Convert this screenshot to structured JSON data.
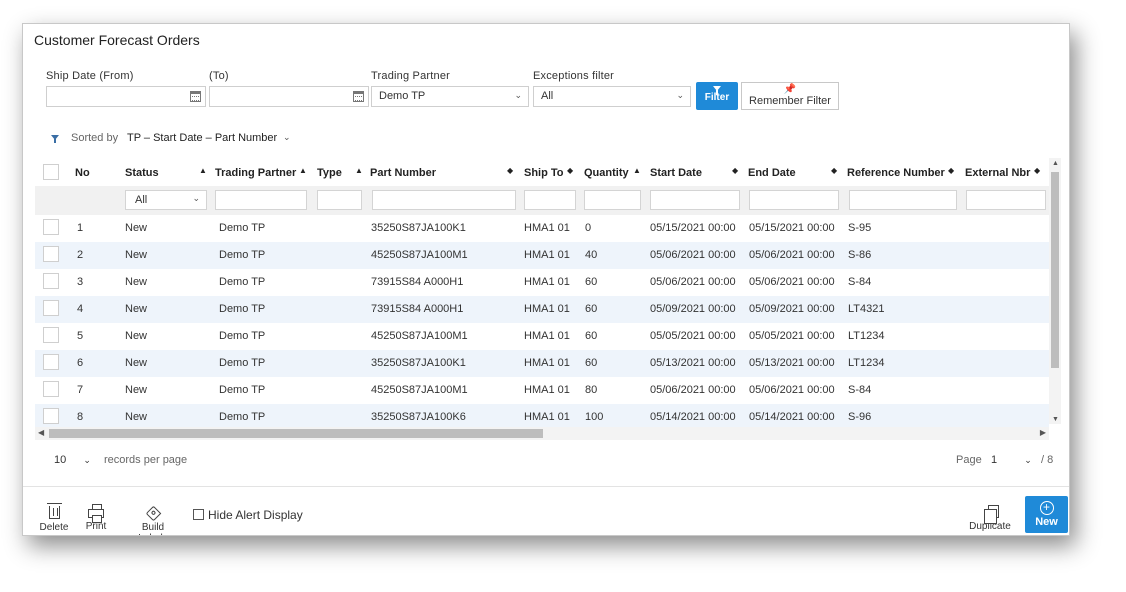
{
  "page": {
    "title": "Customer Forecast Orders"
  },
  "filters": {
    "ship_date_from_label": "Ship Date (From)",
    "ship_date_from_value": "",
    "ship_date_to_label": "(To)",
    "ship_date_to_value": "",
    "trading_partner_label": "Trading Partner",
    "trading_partner_value": "Demo TP",
    "exceptions_label": "Exceptions filter",
    "exceptions_value": "All",
    "filter_button": "Filter",
    "remember_button": "Remember Filter"
  },
  "sort": {
    "label": "Sorted by",
    "value": "TP – Start Date – Part Number"
  },
  "grid": {
    "columns": {
      "no": "No",
      "status": "Status",
      "trading_partner": "Trading Partner",
      "type": "Type",
      "part_number": "Part Number",
      "ship_to": "Ship To",
      "quantity": "Quantity",
      "start_date": "Start Date",
      "end_date": "End Date",
      "reference_number": "Reference Number",
      "external_nbr": "External Nbr"
    },
    "status_filter": "All",
    "rows": [
      {
        "no": "1",
        "status": "New",
        "tp": "Demo TP",
        "type": "",
        "part": "35250S87JA100K1",
        "ship_to": "HMA1 01",
        "qty": "0",
        "start": "05/15/2021 00:00",
        "end": "05/15/2021 00:00",
        "ref": "S-95",
        "ext": ""
      },
      {
        "no": "2",
        "status": "New",
        "tp": "Demo TP",
        "type": "",
        "part": "45250S87JA100M1",
        "ship_to": "HMA1 01",
        "qty": "40",
        "start": "05/06/2021 00:00",
        "end": "05/06/2021 00:00",
        "ref": "S-86",
        "ext": ""
      },
      {
        "no": "3",
        "status": "New",
        "tp": "Demo TP",
        "type": "",
        "part": "73915S84 A000H1",
        "ship_to": "HMA1 01",
        "qty": "60",
        "start": "05/06/2021 00:00",
        "end": "05/06/2021 00:00",
        "ref": "S-84",
        "ext": ""
      },
      {
        "no": "4",
        "status": "New",
        "tp": "Demo TP",
        "type": "",
        "part": "73915S84 A000H1",
        "ship_to": "HMA1 01",
        "qty": "60",
        "start": "05/09/2021 00:00",
        "end": "05/09/2021 00:00",
        "ref": "LT4321",
        "ext": ""
      },
      {
        "no": "5",
        "status": "New",
        "tp": "Demo TP",
        "type": "",
        "part": "45250S87JA100M1",
        "ship_to": "HMA1 01",
        "qty": "60",
        "start": "05/05/2021 00:00",
        "end": "05/05/2021 00:00",
        "ref": "LT1234",
        "ext": ""
      },
      {
        "no": "6",
        "status": "New",
        "tp": "Demo TP",
        "type": "",
        "part": "35250S87JA100K1",
        "ship_to": "HMA1 01",
        "qty": "60",
        "start": "05/13/2021 00:00",
        "end": "05/13/2021 00:00",
        "ref": "LT1234",
        "ext": ""
      },
      {
        "no": "7",
        "status": "New",
        "tp": "Demo TP",
        "type": "",
        "part": "45250S87JA100M1",
        "ship_to": "HMA1 01",
        "qty": "80",
        "start": "05/06/2021 00:00",
        "end": "05/06/2021 00:00",
        "ref": "S-84",
        "ext": ""
      },
      {
        "no": "8",
        "status": "New",
        "tp": "Demo TP",
        "type": "",
        "part": "35250S87JA100K6",
        "ship_to": "HMA1 01",
        "qty": "100",
        "start": "05/14/2021 00:00",
        "end": "05/14/2021 00:00",
        "ref": "S-96",
        "ext": ""
      }
    ]
  },
  "pager": {
    "per_page_value": "10",
    "per_page_label": "records per page",
    "page_label": "Page",
    "page_value": "1",
    "page_total": "/ 8"
  },
  "footer": {
    "delete": "Delete",
    "print": "Print",
    "build_labels": "Build Labels",
    "hide_alert": "Hide Alert Display",
    "duplicate": "Duplicate",
    "new": "New"
  },
  "colors": {
    "accent": "#1f8ad8",
    "row_alt": "#eef4fb"
  }
}
